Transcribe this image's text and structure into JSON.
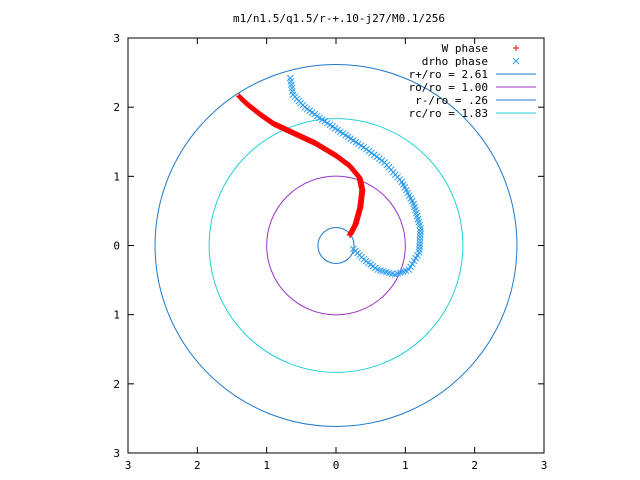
{
  "chart_data": {
    "type": "scatter",
    "title": "m1/n1.5/q1.5/r-+.10-j27/M0.1/256",
    "xlabel": "",
    "ylabel": "",
    "xlim": [
      -3,
      3
    ],
    "ylim": [
      -3,
      3
    ],
    "x_ticks": [
      -3,
      -2,
      -1,
      0,
      1,
      2,
      3
    ],
    "y_ticks": [
      -3,
      -2,
      -1,
      0,
      1,
      2,
      3
    ],
    "x_tick_labels": [
      "3",
      "2",
      "1",
      "0",
      "1",
      "2",
      "3"
    ],
    "y_tick_labels": [
      "3",
      "2",
      "1",
      "0",
      "1",
      "2",
      "3"
    ],
    "grid": false,
    "legend_position": "top-right",
    "series": [
      {
        "name": "W phase",
        "marker": "+",
        "color": "#ff0000",
        "points": [
          [
            0.2,
            0.15
          ],
          [
            0.28,
            0.3
          ],
          [
            0.35,
            0.55
          ],
          [
            0.38,
            0.8
          ],
          [
            0.34,
            0.98
          ],
          [
            0.2,
            1.15
          ],
          [
            0.0,
            1.3
          ],
          [
            -0.3,
            1.48
          ],
          [
            -0.6,
            1.62
          ],
          [
            -0.9,
            1.76
          ],
          [
            -1.1,
            1.9
          ],
          [
            -1.3,
            2.06
          ],
          [
            -1.4,
            2.16
          ]
        ]
      },
      {
        "name": "drho phase",
        "marker": "x",
        "color": "#2a9cf0",
        "points": [
          [
            0.25,
            -0.05
          ],
          [
            0.4,
            -0.2
          ],
          [
            0.6,
            -0.35
          ],
          [
            0.85,
            -0.42
          ],
          [
            1.05,
            -0.35
          ],
          [
            1.2,
            -0.1
          ],
          [
            1.22,
            0.25
          ],
          [
            1.12,
            0.6
          ],
          [
            0.95,
            0.92
          ],
          [
            0.7,
            1.2
          ],
          [
            0.4,
            1.42
          ],
          [
            0.1,
            1.62
          ],
          [
            -0.2,
            1.82
          ],
          [
            -0.45,
            2.0
          ],
          [
            -0.62,
            2.18
          ],
          [
            -0.66,
            2.42
          ]
        ]
      }
    ],
    "circles": [
      {
        "name": "r+/ro = 2.61",
        "radius": 2.61,
        "color": "#1e78c8"
      },
      {
        "name": "ro/ro = 1.00",
        "radius": 1.0,
        "color": "#9b30c8"
      },
      {
        "name": "r-/ro = .26",
        "radius": 0.26,
        "color": "#1e78c8"
      },
      {
        "name": "rc/ro = 1.83",
        "radius": 1.83,
        "color": "#22d0d8"
      }
    ]
  }
}
